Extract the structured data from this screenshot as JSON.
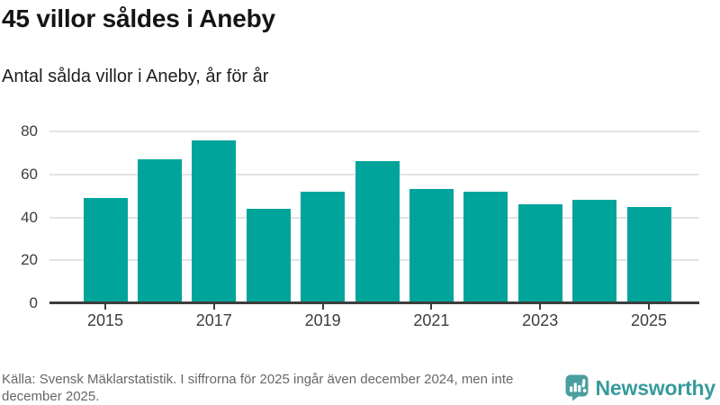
{
  "header": {
    "title": "45 villor såldes i Aneby",
    "subtitle": "Antal sålda villor i Aneby, år för år"
  },
  "footer": {
    "source": "Källa: Svensk Mäklarstatistik. I siffrorna för 2025 ingår även december 2024, men inte december 2025."
  },
  "branding": {
    "name": "Newsworthy",
    "logo_icon": "bar-chart-speech-bubble-icon"
  },
  "colors": {
    "bar": "#00a49b",
    "logo_teal": "#4a9e9e",
    "brand_text": "#379b9b",
    "grid": "#e3e3e3",
    "axis": "#3d3d3d",
    "title_text": "#141414",
    "footer_text": "#66676b"
  },
  "chart_data": {
    "type": "bar",
    "title": "45 villor såldes i Aneby",
    "subtitle": "Antal sålda villor i Aneby, år för år",
    "categories": [
      "2015",
      "2016",
      "2017",
      "2018",
      "2019",
      "2020",
      "2021",
      "2022",
      "2023",
      "2024",
      "2025"
    ],
    "values": [
      49,
      67,
      76,
      44,
      52,
      66,
      53,
      52,
      46,
      48,
      45
    ],
    "x_tick_labels": [
      "2015",
      "2017",
      "2019",
      "2021",
      "2023",
      "2025"
    ],
    "yticks": [
      0,
      20,
      40,
      60,
      80
    ],
    "ylim": [
      0,
      80
    ],
    "xlabel": "",
    "ylabel": "",
    "grid": "horizontal",
    "legend": "none"
  }
}
